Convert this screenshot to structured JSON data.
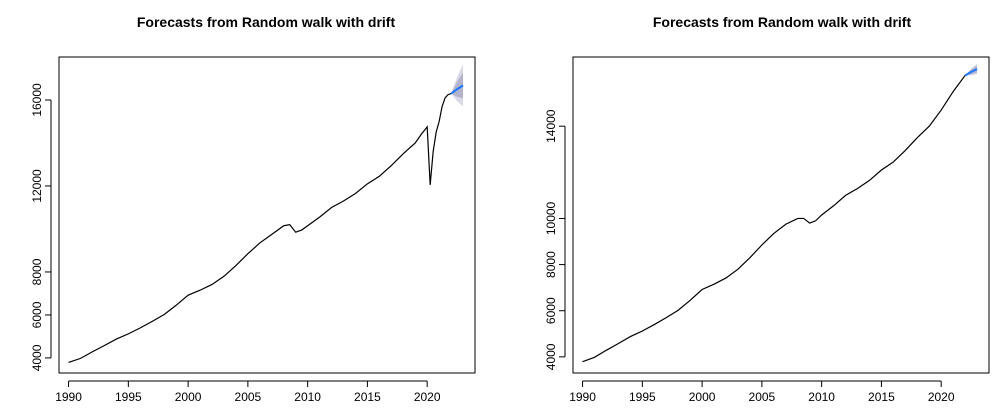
{
  "chart_data": [
    {
      "type": "line",
      "title": "Forecasts from Random walk with drift",
      "xlabel": "",
      "ylabel": "",
      "xlim": [
        1989.2,
        2024.0
      ],
      "ylim": [
        3300,
        18000
      ],
      "x_ticks": [
        1990,
        1995,
        2000,
        2005,
        2010,
        2015,
        2020
      ],
      "x_tick_labels": [
        "1990",
        "1995",
        "2000",
        "2005",
        "2010",
        "2015",
        "2020"
      ],
      "y_ticks": [
        4000,
        6000,
        8000,
        12000,
        16000
      ],
      "y_tick_labels": [
        "4000",
        "6000",
        "8000",
        "12000",
        "16000"
      ],
      "series": [
        {
          "x": [
            1990.0,
            1991.0,
            1992.0,
            1993.0,
            1994.0,
            1995.0,
            1996.0,
            1997.0,
            1998.0,
            1999.0,
            2000.0,
            2001.0,
            2002.0,
            2003.0,
            2004.0,
            2005.0,
            2006.0,
            2007.0,
            2008.0,
            2008.5,
            2009.0,
            2009.5,
            2010.0,
            2011.0,
            2012.0,
            2013.0,
            2014.0,
            2015.0,
            2016.0,
            2017.0,
            2018.0,
            2019.0,
            2019.5,
            2020.0,
            2020.25,
            2020.5,
            2020.75,
            2021.0,
            2021.25,
            2021.5,
            2021.75,
            2022.0
          ],
          "values": [
            3790,
            3980,
            4290,
            4580,
            4880,
            5120,
            5400,
            5700,
            6020,
            6450,
            6920,
            7150,
            7420,
            7800,
            8300,
            8850,
            9350,
            9750,
            10150,
            10200,
            9850,
            9950,
            10150,
            10550,
            11000,
            11300,
            11650,
            12100,
            12450,
            12950,
            13500,
            14000,
            14400,
            14750,
            12050,
            13600,
            14500,
            15000,
            15700,
            16100,
            16250,
            16300
          ]
        }
      ],
      "forecast": {
        "x": [
          2022.0,
          2022.5,
          2023.0
        ],
        "values": [
          16300,
          16500,
          16680
        ],
        "lower80": [
          16300,
          16150,
          16080
        ],
        "upper80": [
          16300,
          16850,
          17280
        ],
        "lower95": [
          16300,
          15950,
          15700
        ],
        "upper95": [
          16300,
          17050,
          17680
        ]
      },
      "grid": false,
      "legend": "none"
    },
    {
      "type": "line",
      "title": "Forecasts from Random walk with drift",
      "xlabel": "",
      "ylabel": "",
      "xlim": [
        1989.2,
        2024.0
      ],
      "ylim": [
        3300,
        17000
      ],
      "x_ticks": [
        1990,
        1995,
        2000,
        2005,
        2010,
        2015,
        2020
      ],
      "x_tick_labels": [
        "1990",
        "1995",
        "2000",
        "2005",
        "2010",
        "2015",
        "2020"
      ],
      "y_ticks": [
        4000,
        6000,
        8000,
        10000,
        14000
      ],
      "y_tick_labels": [
        "4000",
        "6000",
        "8000",
        "10000",
        "14000"
      ],
      "series": [
        {
          "x": [
            1990.0,
            1991.0,
            1992.0,
            1993.0,
            1994.0,
            1995.0,
            1996.0,
            1997.0,
            1998.0,
            1999.0,
            2000.0,
            2001.0,
            2002.0,
            2003.0,
            2004.0,
            2005.0,
            2006.0,
            2007.0,
            2008.0,
            2008.5,
            2009.0,
            2009.5,
            2010.0,
            2011.0,
            2012.0,
            2013.0,
            2014.0,
            2015.0,
            2016.0,
            2017.0,
            2018.0,
            2019.0,
            2020.0,
            2021.0,
            2022.0
          ],
          "values": [
            3790,
            3980,
            4290,
            4580,
            4880,
            5120,
            5400,
            5700,
            6020,
            6450,
            6920,
            7150,
            7420,
            7800,
            8300,
            8850,
            9350,
            9750,
            10000,
            10000,
            9800,
            9900,
            10150,
            10550,
            11000,
            11300,
            11650,
            12100,
            12450,
            12950,
            13500,
            14000,
            14700,
            15500,
            16200
          ]
        }
      ],
      "forecast": {
        "x": [
          2022.0,
          2022.5,
          2023.0
        ],
        "values": [
          16200,
          16350,
          16480
        ],
        "lower80": [
          16200,
          16250,
          16330
        ],
        "upper80": [
          16200,
          16450,
          16630
        ],
        "lower95": [
          16200,
          16200,
          16250
        ],
        "upper95": [
          16200,
          16500,
          16710
        ]
      },
      "grid": false,
      "legend": "none"
    }
  ]
}
